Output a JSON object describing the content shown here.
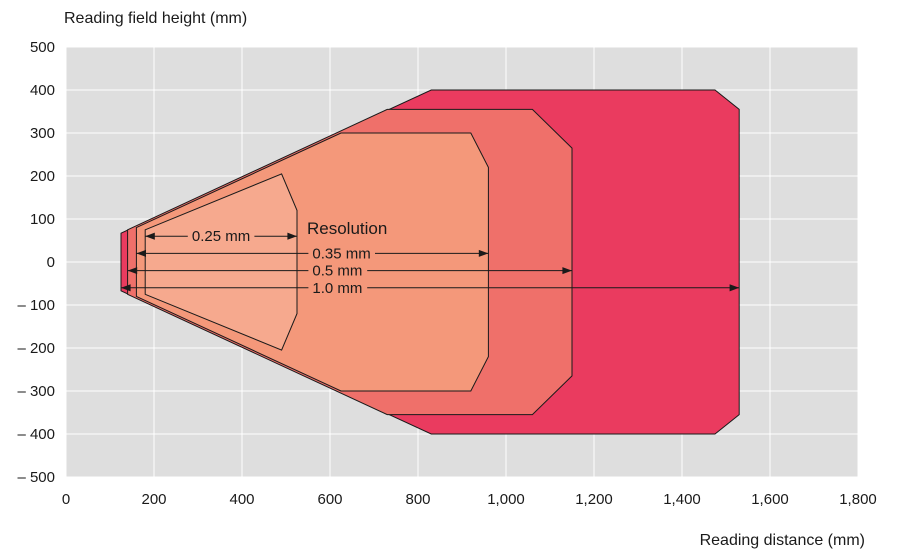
{
  "chart_data": {
    "type": "area",
    "ylabel": "Reading field height (mm)",
    "xlabel": "Reading distance (mm)",
    "xlim": [
      0,
      1800
    ],
    "ylim": [
      -500,
      500
    ],
    "x_ticks": [
      0,
      200,
      400,
      600,
      800,
      1000,
      1200,
      1400,
      1600,
      1800
    ],
    "x_tick_labels": [
      "0",
      "200",
      "400",
      "600",
      "800",
      "1,000",
      "1,200",
      "1,400",
      "1,600",
      "1,800"
    ],
    "y_ticks": [
      500,
      400,
      300,
      200,
      100,
      0,
      -100,
      -200,
      -300,
      -400,
      -500
    ],
    "y_tick_labels": [
      "500",
      "400",
      "300",
      "200",
      "100",
      "0",
      "– 100",
      "– 200",
      "– 300",
      "– 400",
      "– 500"
    ],
    "grid": true,
    "annotation": "Resolution",
    "series": [
      {
        "name": "1.0 mm",
        "color": "#ea3b5f",
        "polygon": [
          [
            125,
            67
          ],
          [
            830,
            400
          ],
          [
            1475,
            400
          ],
          [
            1530,
            355
          ],
          [
            1530,
            -355
          ],
          [
            1475,
            -400
          ],
          [
            830,
            -400
          ],
          [
            125,
            -67
          ]
        ],
        "arrow": {
          "y": -60,
          "x_start": 125,
          "x_end": 1530
        }
      },
      {
        "name": "0.5 mm",
        "color": "#ef706a",
        "polygon": [
          [
            140,
            75
          ],
          [
            730,
            355
          ],
          [
            1060,
            355
          ],
          [
            1150,
            265
          ],
          [
            1150,
            -265
          ],
          [
            1060,
            -355
          ],
          [
            730,
            -355
          ],
          [
            140,
            -75
          ]
        ],
        "arrow": {
          "y": -20,
          "x_start": 140,
          "x_end": 1150
        }
      },
      {
        "name": "0.35 mm",
        "color": "#f4987a",
        "polygon": [
          [
            160,
            80
          ],
          [
            625,
            300
          ],
          [
            920,
            300
          ],
          [
            960,
            220
          ],
          [
            960,
            -220
          ],
          [
            920,
            -300
          ],
          [
            625,
            -300
          ],
          [
            160,
            -80
          ]
        ],
        "arrow": {
          "y": 20,
          "x_start": 160,
          "x_end": 960
        }
      },
      {
        "name": "0.25 mm",
        "color": "#f6a98e",
        "polygon": [
          [
            180,
            75
          ],
          [
            490,
            205
          ],
          [
            525,
            120
          ],
          [
            525,
            -120
          ],
          [
            490,
            -205
          ],
          [
            180,
            -75
          ]
        ],
        "arrow": {
          "y": 60,
          "x_start": 180,
          "x_end": 525
        }
      }
    ]
  }
}
